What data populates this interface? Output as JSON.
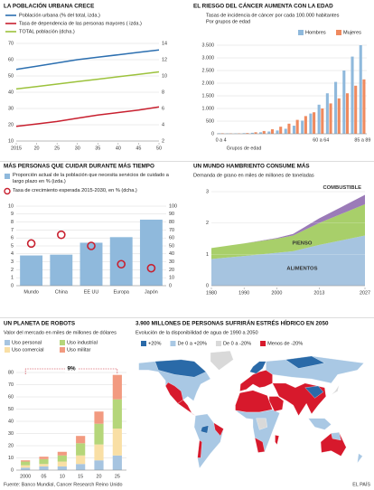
{
  "chart_data": [
    {
      "type": "line",
      "title": "LA POBLACIÓN URBANA CRECE",
      "x": [
        2015,
        2020,
        2025,
        2030,
        2035,
        2040,
        2045,
        2050
      ],
      "series": [
        {
          "name": "Población urbana (% del total, izda.)",
          "color": "#2c6fb0",
          "values": [
            54,
            56,
            58,
            60,
            61.5,
            63,
            64.5,
            66
          ]
        },
        {
          "name": "Tasa de dependencia de las personas mayores ( izda.)",
          "color": "#c8202f",
          "values": [
            19,
            20.5,
            22,
            24,
            26,
            27.5,
            29,
            31
          ]
        },
        {
          "name": "TOTAL población (dcha.)",
          "color": "#9cc23c",
          "axis": "y2",
          "values": [
            8.4,
            8.7,
            9.0,
            9.3,
            9.6,
            9.9,
            10.2,
            10.5
          ]
        }
      ],
      "xlim": [
        2015,
        2050
      ],
      "xticks": [
        2015,
        {
          "value": 2020,
          "label": "20"
        },
        {
          "value": 2025,
          "label": "25"
        },
        {
          "value": 2030,
          "label": "30"
        },
        {
          "value": 2035,
          "label": "35"
        },
        {
          "value": 2040,
          "label": "40"
        },
        {
          "value": 2045,
          "label": "45"
        },
        {
          "value": 2050,
          "label": "50"
        }
      ],
      "ylim": [
        10,
        70
      ],
      "yticks": [
        10,
        20,
        30,
        40,
        50,
        60,
        70
      ],
      "y2lim": [
        2,
        14
      ],
      "y2ticks": [
        2,
        4,
        6,
        8,
        10,
        12,
        14
      ],
      "grid": true
    },
    {
      "type": "bar",
      "title": "EL RIESGO DEL CÁNCER AUMENTA CON LA EDAD",
      "subtitle": "Tasas de incidencia de cáncer por cada 100.000 habitantes",
      "subtitle2": "Por grupos de edad",
      "xlabel": "Grupos de edad",
      "categories": [
        "0 a 4",
        null,
        null,
        null,
        null,
        null,
        null,
        null,
        null,
        null,
        null,
        null,
        "60 a 64",
        null,
        null,
        null,
        null,
        "85 a 89"
      ],
      "series": [
        {
          "name": "Hombres",
          "color": "#8fb9dc",
          "values": [
            20,
            15,
            15,
            25,
            40,
            60,
            90,
            130,
            200,
            320,
            520,
            800,
            1150,
            1600,
            2050,
            2500,
            3050,
            3500
          ]
        },
        {
          "name": "Mujeres",
          "color": "#ef8a5f",
          "values": [
            20,
            15,
            15,
            30,
            60,
            110,
            180,
            280,
            400,
            550,
            700,
            850,
            1000,
            1200,
            1400,
            1600,
            1900,
            2150
          ]
        }
      ],
      "ylim": [
        0,
        3500
      ],
      "yticks": [
        0,
        500,
        {
          "value": 1000,
          "label": "1.000"
        },
        {
          "value": 1500,
          "label": "1.500"
        },
        {
          "value": 2000,
          "label": "2.000"
        },
        {
          "value": 2500,
          "label": "2.500"
        },
        {
          "value": 3000,
          "label": "3.000"
        },
        {
          "value": 3500,
          "label": "3.500"
        }
      ],
      "grid": true
    },
    {
      "type": "bar",
      "title": "MÁS PERSONAS QUE CUIDAR DURANTE MÁS TIEMPO",
      "categories": [
        "Mundo",
        "China",
        "EE UU",
        "Europa",
        "Japón"
      ],
      "series": [
        {
          "name": "Proporción actual de la población que necesita servicios de cuidado a largo plazo en % (izda.)",
          "color": "#8fb9dc",
          "values": [
            3.8,
            3.9,
            5.4,
            6.1,
            8.3
          ]
        },
        {
          "name": "Tasa de crecimiento esperada 2015-2030, en % (dcha.)",
          "color": "#c8202f",
          "axis": "y2",
          "marker": "circle",
          "values": [
            53,
            64,
            50,
            27,
            22
          ]
        }
      ],
      "ylim": [
        0,
        10
      ],
      "yticks": [
        0,
        1,
        2,
        3,
        4,
        5,
        6,
        7,
        8,
        9,
        10
      ],
      "y2lim": [
        0,
        100
      ],
      "y2ticks": [
        0,
        10,
        20,
        30,
        40,
        50,
        60,
        70,
        80,
        90,
        100
      ],
      "grid": true
    },
    {
      "type": "area",
      "title": "UN MUNDO HAMBRIENTO CONSUME MÁS",
      "subtitle": "Demanda de grano en miles de millones de toneladas",
      "x": [
        1980,
        1990,
        2000,
        2005,
        2013,
        2020,
        2027
      ],
      "series": [
        {
          "name": "ALIMENTOS",
          "color": "#a6c4e0",
          "values": [
            0.85,
            0.95,
            1.05,
            1.1,
            1.3,
            1.45,
            1.6
          ]
        },
        {
          "name": "PIENSO",
          "color": "#a8cf6a",
          "values": [
            0.35,
            0.4,
            0.45,
            0.5,
            0.7,
            0.85,
            1.0
          ]
        },
        {
          "name": "COMBUSTIBLE",
          "color": "#9b7bb8",
          "values": [
            0,
            0,
            0.02,
            0.05,
            0.15,
            0.22,
            0.3
          ]
        }
      ],
      "stacked": true,
      "xlim": [
        1980,
        2027
      ],
      "xticks": [
        1980,
        1990,
        2000,
        2013,
        2027
      ],
      "ylim": [
        0,
        3
      ],
      "yticks": [
        0,
        1,
        2,
        3
      ],
      "grid": true
    },
    {
      "type": "bar",
      "title": "UN PLANETA DE  ROBOTS",
      "subtitle": "Valor del mercado en miles de millones de dólares",
      "categories": [
        "2000",
        "05",
        "10",
        "15",
        "20",
        "25"
      ],
      "series": [
        {
          "name": "Uso personal",
          "color": "#a6c4e0",
          "values": [
            2,
            3,
            3,
            5,
            8,
            12
          ]
        },
        {
          "name": "Uso comercial",
          "color": "#f9dfa5",
          "values": [
            2,
            2,
            4,
            7,
            13,
            22
          ]
        },
        {
          "name": "Uso industrial",
          "color": "#b5d67a",
          "values": [
            3,
            4,
            5,
            10,
            17,
            24
          ]
        },
        {
          "name": "Uso militar",
          "color": "#f29a80",
          "values": [
            1,
            2,
            3,
            6,
            10,
            20
          ]
        }
      ],
      "stacked": true,
      "annotation": "9%",
      "ylim": [
        0,
        80
      ],
      "yticks": [
        0,
        10,
        20,
        30,
        40,
        50,
        60,
        70,
        80
      ],
      "grid": true
    }
  ],
  "map": {
    "title": "3.900 MILLONES DE PERSONAS SUFRIRÁN ESTRÉS HÍDRICO EN 2050",
    "subtitle": "Evolución de la disponibilidad de agua de 1990 a 2050",
    "legend": [
      {
        "label": "+20%",
        "color": "#2a6aa8"
      },
      {
        "label": "De 0 a +20%",
        "color": "#a9c8e4"
      },
      {
        "label": "De 0 a -20%",
        "color": "#d9d9d9"
      },
      {
        "label": "Menos de -20%",
        "color": "#d7192c"
      }
    ]
  },
  "footer": {
    "source": "Fuente: Banco Mundial, Cancer Research Reino Unido",
    "credit": "EL PAÍS"
  }
}
